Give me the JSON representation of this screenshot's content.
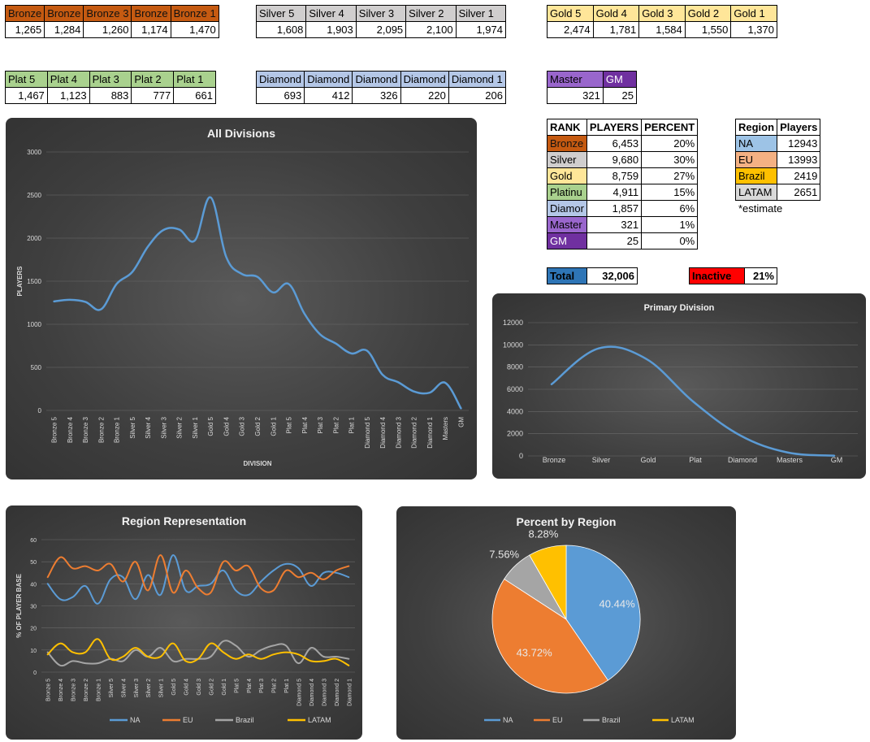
{
  "tables": {
    "bronze": {
      "labels": [
        "Bronze",
        "Bronze",
        "Bronze 3",
        "Bronze",
        "Bronze 1"
      ],
      "values": [
        "1,265",
        "1,284",
        "1,260",
        "1,174",
        "1,470"
      ]
    },
    "silver": {
      "labels": [
        "Silver 5",
        "Silver 4",
        "Silver 3",
        "Silver 2",
        "Silver 1"
      ],
      "values": [
        "1,608",
        "1,903",
        "2,095",
        "2,100",
        "1,974"
      ]
    },
    "gold": {
      "labels": [
        "Gold 5",
        "Gold 4",
        "Gold 3",
        "Gold 2",
        "Gold 1"
      ],
      "values": [
        "2,474",
        "1,781",
        "1,584",
        "1,550",
        "1,370"
      ]
    },
    "plat": {
      "labels": [
        "Plat 5",
        "Plat 4",
        "Plat 3",
        "Plat 2",
        "Plat 1"
      ],
      "values": [
        "1,467",
        "1,123",
        "883",
        "777",
        "661"
      ]
    },
    "diamond": {
      "labels": [
        "Diamond",
        "Diamond",
        "Diamond",
        "Diamond",
        "Diamond 1"
      ],
      "values": [
        "693",
        "412",
        "326",
        "220",
        "206"
      ]
    },
    "master": {
      "labels": [
        "Master",
        "GM"
      ],
      "values": [
        "321",
        "25"
      ]
    }
  },
  "rank_table": {
    "headers": [
      "RANK",
      "PLAYERS",
      "PERCENT"
    ],
    "rows": [
      {
        "rank": "Bronze",
        "players": "6,453",
        "percent": "20%"
      },
      {
        "rank": "Silver",
        "players": "9,680",
        "percent": "30%"
      },
      {
        "rank": "Gold",
        "players": "8,759",
        "percent": "27%"
      },
      {
        "rank": "Platinu",
        "players": "4,911",
        "percent": "15%"
      },
      {
        "rank": "Diamor",
        "players": "1,857",
        "percent": "6%"
      },
      {
        "rank": "Master",
        "players": "321",
        "percent": "1%"
      },
      {
        "rank": "GM",
        "players": "25",
        "percent": "0%"
      }
    ]
  },
  "region_table": {
    "headers": [
      "Region",
      "Players"
    ],
    "rows": [
      {
        "region": "NA",
        "players": "12943"
      },
      {
        "region": "EU",
        "players": "13993"
      },
      {
        "region": "Brazil",
        "players": "2419"
      },
      {
        "region": "LATAM",
        "players": "2651"
      }
    ],
    "note": "*estimate"
  },
  "summary": {
    "total_label": "Total",
    "total_value": "32,006",
    "inactive_label": "Inactive",
    "inactive_value": "21%"
  },
  "colors": {
    "na": "#5b9bd5",
    "eu": "#ed7d31",
    "brazil": "#a5a5a5",
    "latam": "#ffc000"
  },
  "chart_data": [
    {
      "type": "line",
      "title": "All Divisions",
      "xlabel": "DIVISION",
      "ylabel": "PLAYERS",
      "ylim": [
        0,
        3000
      ],
      "yticks": [
        "0",
        "500",
        "1000",
        "1500",
        "2000",
        "2500",
        "3000"
      ],
      "grid": true,
      "categories": [
        "Bronze 5",
        "Bronze 4",
        "Bronze 3",
        "Bronze 2",
        "Bronze 1",
        "Silver 5",
        "Silver 4",
        "Silver 3",
        "Silver 2",
        "Silver 1",
        "Gold 5",
        "Gold 4",
        "Gold 3",
        "Gold 2",
        "Gold 1",
        "Plat 5",
        "Plat 4",
        "Plat 3",
        "Plat 2",
        "Plat 1",
        "Diamond 5",
        "Diamond 4",
        "Diamond 3",
        "Diamond 2",
        "Diamond 1",
        "Masters",
        "GM"
      ],
      "values": [
        1265,
        1284,
        1260,
        1174,
        1470,
        1608,
        1903,
        2095,
        2100,
        1974,
        2474,
        1781,
        1584,
        1550,
        1370,
        1467,
        1123,
        883,
        777,
        661,
        693,
        412,
        326,
        220,
        206,
        321,
        25
      ]
    },
    {
      "type": "line",
      "title": "Primary Division",
      "ylim": [
        0,
        12000
      ],
      "yticks": [
        "0",
        "2000",
        "4000",
        "6000",
        "8000",
        "10000",
        "12000"
      ],
      "grid": true,
      "categories": [
        "Bronze",
        "Silver",
        "Gold",
        "Plat",
        "Diamond",
        "Masters",
        "GM"
      ],
      "values": [
        6453,
        9680,
        8759,
        4911,
        1857,
        321,
        25
      ]
    },
    {
      "type": "line",
      "title": "Region Representation",
      "ylabel": "% OF PLAYER BASE",
      "ylim": [
        0,
        60
      ],
      "yticks": [
        "0",
        "10",
        "20",
        "30",
        "40",
        "50",
        "60"
      ],
      "grid": true,
      "legend": "bottom",
      "categories": [
        "Bronze 5",
        "Bronze 4",
        "Bronze 3",
        "Bronze 2",
        "Bronze 1",
        "Silver 5",
        "Silver 4",
        "Silver 3",
        "Silver 2",
        "Silver 1",
        "Gold 5",
        "Gold 4",
        "Gold 3",
        "Gold 2",
        "Gold 1",
        "Plat 5",
        "Plat 4",
        "Plat 3",
        "Plat 2",
        "Plat 1",
        "Diamond 5",
        "Diamond 4",
        "Diamond 3",
        "Diamond 2",
        "Diamond 1"
      ],
      "series": [
        {
          "name": "NA",
          "color": "#5b9bd5",
          "values": [
            40,
            33,
            34,
            39,
            31,
            42,
            43,
            33,
            44,
            35,
            53,
            37,
            39,
            40,
            46,
            37,
            35,
            41,
            46,
            49,
            47,
            39,
            45,
            45,
            43
          ]
        },
        {
          "name": "EU",
          "color": "#ed7d31",
          "values": [
            43,
            52,
            47,
            48,
            46,
            49,
            41,
            50,
            37,
            53,
            36,
            46,
            38,
            36,
            50,
            46,
            48,
            38,
            37,
            46,
            43,
            45,
            42,
            46,
            48
          ]
        },
        {
          "name": "Brazil",
          "color": "#a5a5a5",
          "values": [
            9,
            3,
            5,
            4,
            4,
            6,
            5,
            10,
            7,
            11,
            5,
            6,
            6,
            7,
            14,
            12,
            7,
            10,
            12,
            12,
            4,
            11,
            7,
            7,
            6
          ]
        },
        {
          "name": "LATAM",
          "color": "#ffc000",
          "values": [
            8,
            13,
            9,
            9,
            15,
            6,
            7,
            11,
            7,
            7,
            13,
            5,
            6,
            13,
            9,
            6,
            8,
            6,
            8,
            9,
            8,
            5,
            5,
            6,
            3
          ]
        }
      ]
    },
    {
      "type": "pie",
      "title": "Percent by Region",
      "legend": "bottom",
      "slices": [
        {
          "name": "NA",
          "color": "#5b9bd5",
          "value": 40.44,
          "label": "40.44%"
        },
        {
          "name": "EU",
          "color": "#ed7d31",
          "value": 43.72,
          "label": "43.72%"
        },
        {
          "name": "Brazil",
          "color": "#a5a5a5",
          "value": 7.56,
          "label": "7.56%"
        },
        {
          "name": "LATAM",
          "color": "#ffc000",
          "value": 8.28,
          "label": "8.28%"
        }
      ]
    }
  ]
}
